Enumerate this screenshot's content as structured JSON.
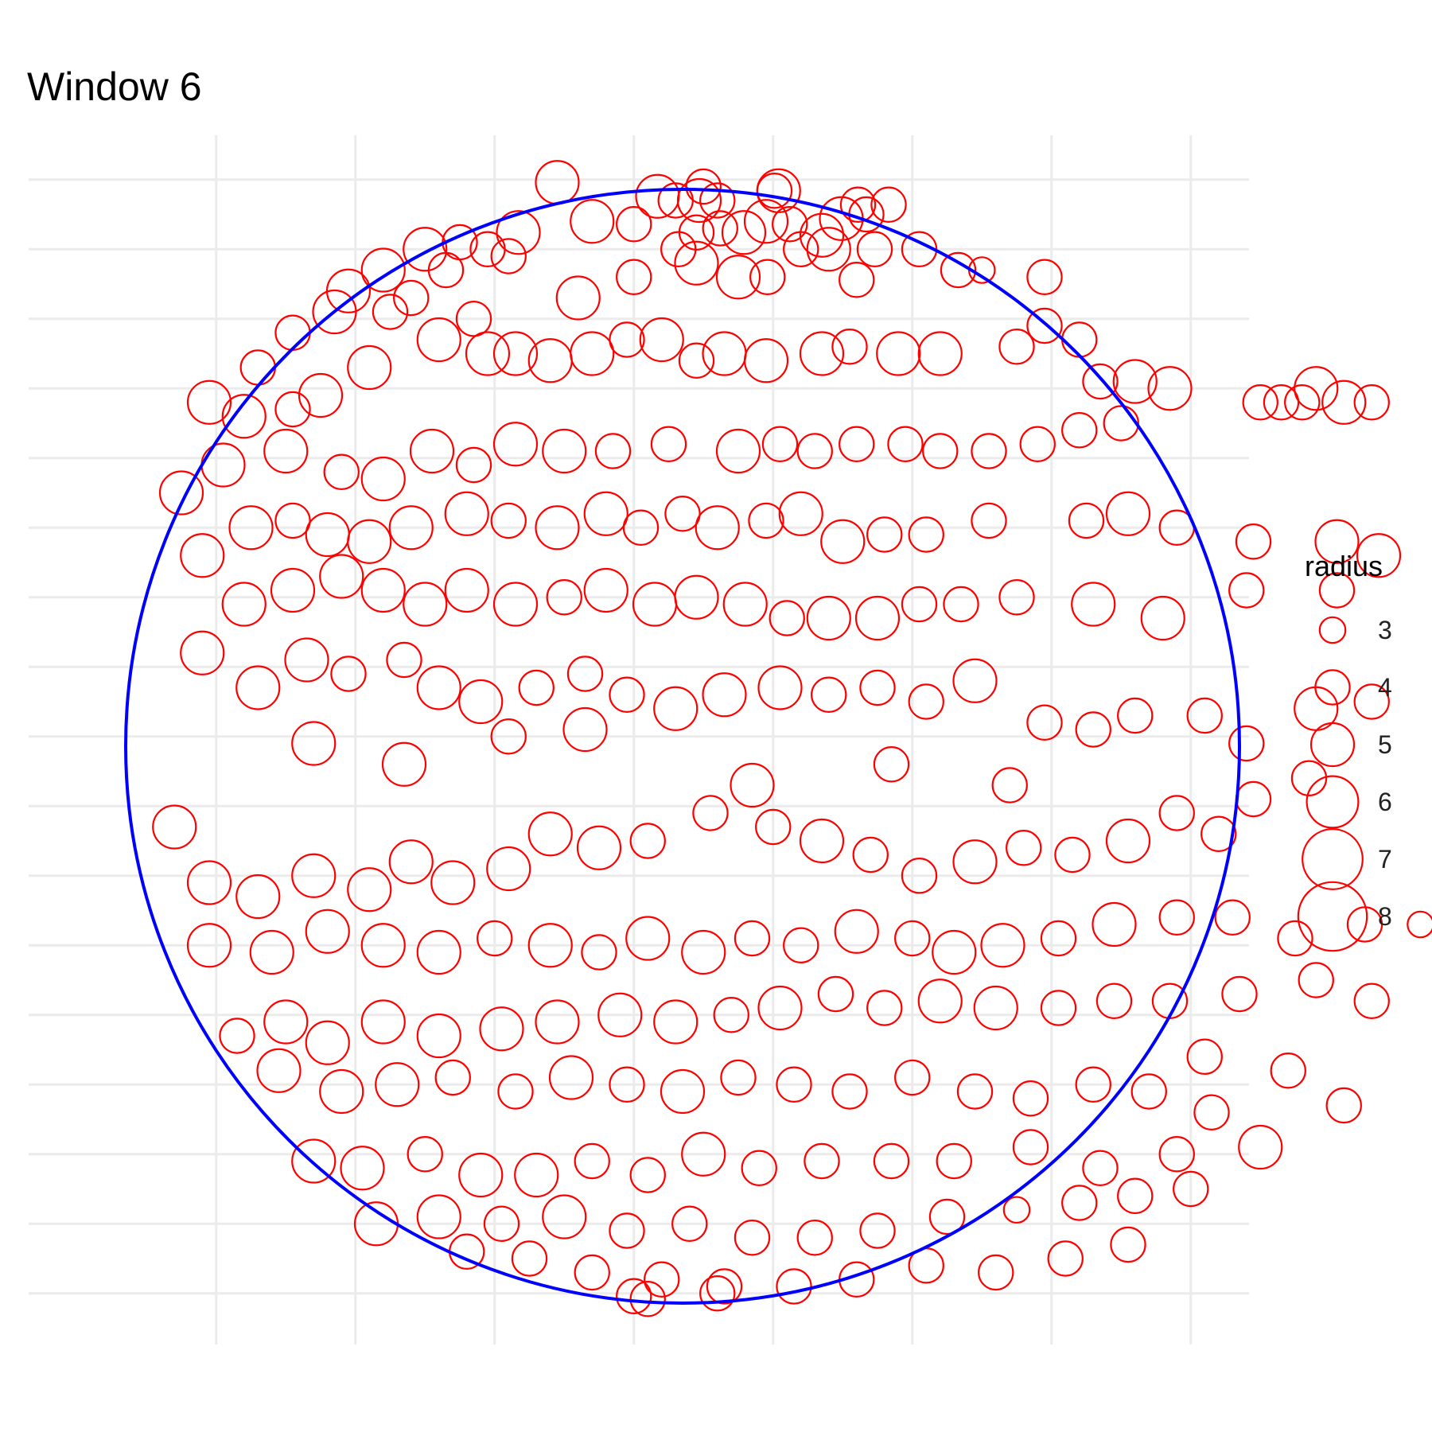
{
  "title": "Window 6",
  "chart_data": {
    "type": "scatter",
    "title": "Window 6",
    "xlabel": "",
    "ylabel": "",
    "grid": true,
    "legend_placement": "right",
    "legend": {
      "title": "radius",
      "sizes": [
        3,
        4,
        5,
        6,
        7,
        8
      ],
      "labels": [
        "3",
        "4",
        "5",
        "6",
        "7",
        "8"
      ]
    },
    "window": {
      "shape": "circle",
      "center": [
        0.35,
        -0.07
      ],
      "radius": 4.0,
      "color": "#0000ff"
    },
    "point_color": "#ff0000",
    "xlim": [
      -3.35,
      5.85
    ],
    "ylim": [
      -4.5,
      4.5
    ],
    "points": [
      [
        -0.55,
        3.98,
        5
      ],
      [
        0.17,
        3.88,
        5
      ],
      [
        0.5,
        3.95,
        4
      ],
      [
        1.01,
        3.92,
        4
      ],
      [
        1.04,
        3.92,
        5
      ],
      [
        0.3,
        3.85,
        4
      ],
      [
        0.47,
        3.85,
        5
      ],
      [
        0.6,
        3.85,
        4
      ],
      [
        1.61,
        3.82,
        4
      ],
      [
        1.83,
        3.82,
        4
      ],
      [
        1.49,
        3.72,
        5
      ],
      [
        1.67,
        3.75,
        4
      ],
      [
        0.95,
        3.7,
        5
      ],
      [
        0.62,
        3.65,
        4
      ],
      [
        0.79,
        3.62,
        5
      ],
      [
        0.45,
        3.62,
        4
      ],
      [
        0.0,
        3.68,
        4
      ],
      [
        -0.3,
        3.7,
        5
      ],
      [
        -0.83,
        3.62,
        5
      ],
      [
        -1.05,
        3.5,
        4
      ],
      [
        -1.25,
        3.55,
        4
      ],
      [
        -1.5,
        3.5,
        5
      ],
      [
        -0.9,
        3.45,
        4
      ],
      [
        -1.35,
        3.35,
        4
      ],
      [
        1.12,
        3.68,
        4
      ],
      [
        1.35,
        3.6,
        5
      ],
      [
        1.73,
        3.5,
        4
      ],
      [
        2.05,
        3.5,
        4
      ],
      [
        1.2,
        3.5,
        4
      ],
      [
        0.32,
        3.5,
        4
      ],
      [
        0.45,
        3.4,
        5
      ],
      [
        0.75,
        3.3,
        5
      ],
      [
        0.96,
        3.3,
        4
      ],
      [
        1.4,
        3.5,
        5
      ],
      [
        1.6,
        3.28,
        4
      ],
      [
        2.33,
        3.35,
        4
      ],
      [
        2.5,
        3.35,
        3
      ],
      [
        2.95,
        3.3,
        4
      ],
      [
        0.0,
        3.3,
        4
      ],
      [
        -0.4,
        3.15,
        5
      ],
      [
        -1.8,
        3.35,
        5
      ],
      [
        -2.05,
        3.2,
        5
      ],
      [
        -2.15,
        3.05,
        5
      ],
      [
        -1.75,
        3.05,
        4
      ],
      [
        -1.6,
        3.15,
        4
      ],
      [
        -2.45,
        2.9,
        4
      ],
      [
        -2.7,
        2.65,
        4
      ],
      [
        -3.05,
        2.4,
        5
      ],
      [
        -2.45,
        2.35,
        4
      ],
      [
        -2.25,
        2.45,
        5
      ],
      [
        -2.8,
        2.3,
        5
      ],
      [
        -1.9,
        2.65,
        5
      ],
      [
        -1.4,
        2.85,
        5
      ],
      [
        -1.15,
        3.0,
        4
      ],
      [
        -1.05,
        2.75,
        5
      ],
      [
        -0.85,
        2.75,
        5
      ],
      [
        -0.6,
        2.7,
        5
      ],
      [
        -0.3,
        2.75,
        5
      ],
      [
        -0.05,
        2.85,
        4
      ],
      [
        0.2,
        2.85,
        5
      ],
      [
        0.45,
        2.7,
        4
      ],
      [
        0.65,
        2.75,
        5
      ],
      [
        0.95,
        2.7,
        5
      ],
      [
        1.35,
        2.75,
        5
      ],
      [
        1.55,
        2.8,
        4
      ],
      [
        1.9,
        2.75,
        5
      ],
      [
        2.2,
        2.75,
        5
      ],
      [
        2.75,
        2.8,
        4
      ],
      [
        2.95,
        2.95,
        4
      ],
      [
        3.2,
        2.85,
        4
      ],
      [
        3.35,
        2.55,
        4
      ],
      [
        3.6,
        2.55,
        5
      ],
      [
        3.85,
        2.5,
        5
      ],
      [
        4.5,
        2.4,
        4
      ],
      [
        4.9,
        2.5,
        5
      ],
      [
        4.65,
        2.4,
        4
      ],
      [
        4.8,
        2.4,
        4
      ],
      [
        5.1,
        2.4,
        5
      ],
      [
        5.3,
        2.4,
        4
      ],
      [
        3.5,
        2.25,
        4
      ],
      [
        3.2,
        2.2,
        4
      ],
      [
        2.9,
        2.1,
        4
      ],
      [
        2.55,
        2.05,
        4
      ],
      [
        2.2,
        2.05,
        4
      ],
      [
        1.95,
        2.1,
        4
      ],
      [
        1.6,
        2.1,
        4
      ],
      [
        1.3,
        2.05,
        4
      ],
      [
        1.05,
        2.1,
        4
      ],
      [
        0.75,
        2.05,
        5
      ],
      [
        0.25,
        2.1,
        4
      ],
      [
        -0.15,
        2.05,
        4
      ],
      [
        -0.5,
        2.05,
        5
      ],
      [
        -0.85,
        2.1,
        5
      ],
      [
        -1.15,
        1.95,
        4
      ],
      [
        -1.45,
        2.05,
        5
      ],
      [
        -1.8,
        1.85,
        5
      ],
      [
        -2.1,
        1.9,
        4
      ],
      [
        -2.5,
        2.05,
        5
      ],
      [
        -2.95,
        1.95,
        5
      ],
      [
        -3.25,
        1.75,
        5
      ],
      [
        -3.1,
        1.3,
        5
      ],
      [
        -2.75,
        1.5,
        5
      ],
      [
        -2.45,
        1.55,
        4
      ],
      [
        -2.2,
        1.45,
        5
      ],
      [
        -1.9,
        1.4,
        5
      ],
      [
        -1.6,
        1.5,
        5
      ],
      [
        -1.2,
        1.6,
        5
      ],
      [
        -0.9,
        1.55,
        4
      ],
      [
        -0.55,
        1.5,
        5
      ],
      [
        -0.2,
        1.6,
        5
      ],
      [
        0.05,
        1.5,
        4
      ],
      [
        0.35,
        1.6,
        4
      ],
      [
        0.6,
        1.5,
        5
      ],
      [
        0.95,
        1.55,
        4
      ],
      [
        1.2,
        1.6,
        5
      ],
      [
        1.5,
        1.4,
        5
      ],
      [
        1.8,
        1.45,
        4
      ],
      [
        2.1,
        1.45,
        4
      ],
      [
        2.55,
        1.55,
        4
      ],
      [
        3.25,
        1.55,
        4
      ],
      [
        3.55,
        1.6,
        5
      ],
      [
        3.9,
        1.5,
        4
      ],
      [
        4.45,
        1.4,
        4
      ],
      [
        5.05,
        1.4,
        5
      ],
      [
        5.35,
        1.3,
        5
      ],
      [
        5.05,
        1.05,
        4
      ],
      [
        4.4,
        1.05,
        4
      ],
      [
        3.8,
        0.85,
        5
      ],
      [
        3.3,
        0.95,
        5
      ],
      [
        2.75,
        1.0,
        4
      ],
      [
        2.35,
        0.95,
        4
      ],
      [
        2.05,
        0.95,
        4
      ],
      [
        1.75,
        0.85,
        5
      ],
      [
        1.4,
        0.85,
        5
      ],
      [
        1.1,
        0.85,
        4
      ],
      [
        0.8,
        0.95,
        5
      ],
      [
        0.45,
        1.0,
        5
      ],
      [
        0.15,
        0.95,
        5
      ],
      [
        -0.2,
        1.05,
        5
      ],
      [
        -0.5,
        1.0,
        4
      ],
      [
        -0.85,
        0.95,
        5
      ],
      [
        -1.2,
        1.05,
        5
      ],
      [
        -1.5,
        0.95,
        5
      ],
      [
        -1.8,
        1.05,
        5
      ],
      [
        -2.1,
        1.15,
        5
      ],
      [
        -2.45,
        1.05,
        5
      ],
      [
        -2.8,
        0.95,
        5
      ],
      [
        -3.1,
        0.6,
        5
      ],
      [
        -2.7,
        0.35,
        5
      ],
      [
        -2.35,
        0.55,
        5
      ],
      [
        -2.05,
        0.45,
        4
      ],
      [
        -1.65,
        0.55,
        4
      ],
      [
        -1.4,
        0.35,
        5
      ],
      [
        -1.1,
        0.25,
        5
      ],
      [
        -0.7,
        0.35,
        4
      ],
      [
        -0.35,
        0.45,
        4
      ],
      [
        -0.05,
        0.3,
        4
      ],
      [
        0.3,
        0.2,
        5
      ],
      [
        0.65,
        0.3,
        5
      ],
      [
        1.05,
        0.35,
        5
      ],
      [
        1.4,
        0.3,
        4
      ],
      [
        1.75,
        0.35,
        4
      ],
      [
        2.1,
        0.25,
        4
      ],
      [
        2.45,
        0.4,
        5
      ],
      [
        2.95,
        0.1,
        4
      ],
      [
        3.3,
        0.05,
        4
      ],
      [
        3.6,
        0.15,
        4
      ],
      [
        4.1,
        0.15,
        4
      ],
      [
        4.4,
        -0.05,
        4
      ],
      [
        4.9,
        0.2,
        5
      ],
      [
        5.3,
        0.25,
        4
      ],
      [
        4.85,
        -0.3,
        4
      ],
      [
        4.45,
        -0.45,
        4
      ],
      [
        4.2,
        -0.7,
        4
      ],
      [
        3.9,
        -0.55,
        4
      ],
      [
        3.55,
        -0.75,
        5
      ],
      [
        3.15,
        -0.85,
        4
      ],
      [
        2.8,
        -0.8,
        4
      ],
      [
        2.45,
        -0.9,
        5
      ],
      [
        2.05,
        -1.0,
        4
      ],
      [
        1.7,
        -0.85,
        4
      ],
      [
        1.35,
        -0.75,
        5
      ],
      [
        1.0,
        -0.65,
        4
      ],
      [
        0.55,
        -0.55,
        4
      ],
      [
        0.1,
        -0.75,
        4
      ],
      [
        -0.25,
        -0.8,
        5
      ],
      [
        -0.6,
        -0.7,
        5
      ],
      [
        -0.9,
        -0.95,
        5
      ],
      [
        -1.3,
        -1.05,
        5
      ],
      [
        -1.6,
        -0.9,
        5
      ],
      [
        -1.9,
        -1.1,
        5
      ],
      [
        -2.3,
        -1.0,
        5
      ],
      [
        -2.7,
        -1.15,
        5
      ],
      [
        -3.05,
        -1.05,
        5
      ],
      [
        -3.3,
        -0.65,
        5
      ],
      [
        -3.05,
        -1.5,
        5
      ],
      [
        -2.6,
        -1.55,
        5
      ],
      [
        -2.2,
        -1.4,
        5
      ],
      [
        -1.8,
        -1.5,
        5
      ],
      [
        -1.4,
        -1.55,
        5
      ],
      [
        -1.0,
        -1.45,
        4
      ],
      [
        -0.6,
        -1.5,
        5
      ],
      [
        -0.25,
        -1.55,
        4
      ],
      [
        0.1,
        -1.45,
        5
      ],
      [
        0.5,
        -1.55,
        5
      ],
      [
        0.85,
        -1.45,
        4
      ],
      [
        1.2,
        -1.5,
        4
      ],
      [
        1.6,
        -1.4,
        5
      ],
      [
        2.0,
        -1.45,
        4
      ],
      [
        2.3,
        -1.55,
        5
      ],
      [
        2.65,
        -1.5,
        5
      ],
      [
        3.05,
        -1.45,
        4
      ],
      [
        3.45,
        -1.35,
        5
      ],
      [
        3.9,
        -1.3,
        4
      ],
      [
        4.3,
        -1.3,
        4
      ],
      [
        4.75,
        -1.45,
        4
      ],
      [
        5.25,
        -1.35,
        4
      ],
      [
        5.65,
        -1.35,
        3
      ],
      [
        5.3,
        -1.9,
        4
      ],
      [
        4.9,
        -1.75,
        4
      ],
      [
        4.35,
        -1.85,
        4
      ],
      [
        3.85,
        -1.9,
        4
      ],
      [
        3.45,
        -1.9,
        4
      ],
      [
        3.05,
        -1.95,
        4
      ],
      [
        2.6,
        -1.95,
        5
      ],
      [
        2.2,
        -1.9,
        5
      ],
      [
        1.8,
        -1.95,
        4
      ],
      [
        1.45,
        -1.85,
        4
      ],
      [
        1.05,
        -1.95,
        5
      ],
      [
        0.7,
        -2.0,
        4
      ],
      [
        0.3,
        -2.05,
        5
      ],
      [
        -0.1,
        -2.0,
        5
      ],
      [
        -0.55,
        -2.05,
        5
      ],
      [
        -0.95,
        -2.1,
        5
      ],
      [
        -1.4,
        -2.15,
        5
      ],
      [
        -1.8,
        -2.05,
        5
      ],
      [
        -2.2,
        -2.2,
        5
      ],
      [
        -2.5,
        -2.05,
        5
      ],
      [
        -2.85,
        -2.15,
        4
      ],
      [
        -2.55,
        -2.4,
        5
      ],
      [
        -2.1,
        -2.55,
        5
      ],
      [
        -1.7,
        -2.5,
        5
      ],
      [
        -1.3,
        -2.45,
        4
      ],
      [
        -0.85,
        -2.55,
        4
      ],
      [
        -0.45,
        -2.45,
        5
      ],
      [
        -0.05,
        -2.5,
        4
      ],
      [
        0.35,
        -2.55,
        5
      ],
      [
        0.75,
        -2.45,
        4
      ],
      [
        1.15,
        -2.5,
        4
      ],
      [
        1.55,
        -2.55,
        4
      ],
      [
        2.0,
        -2.45,
        4
      ],
      [
        2.45,
        -2.55,
        4
      ],
      [
        2.85,
        -2.6,
        4
      ],
      [
        3.3,
        -2.5,
        4
      ],
      [
        3.7,
        -2.55,
        4
      ],
      [
        4.15,
        -2.7,
        4
      ],
      [
        4.7,
        -2.4,
        4
      ],
      [
        5.1,
        -2.65,
        4
      ],
      [
        4.5,
        -2.95,
        5
      ],
      [
        3.9,
        -3.0,
        4
      ],
      [
        3.35,
        -3.1,
        4
      ],
      [
        2.85,
        -2.95,
        4
      ],
      [
        2.3,
        -3.05,
        4
      ],
      [
        1.85,
        -3.05,
        4
      ],
      [
        1.35,
        -3.05,
        4
      ],
      [
        0.9,
        -3.1,
        4
      ],
      [
        0.5,
        -3.0,
        5
      ],
      [
        0.1,
        -3.15,
        4
      ],
      [
        -0.3,
        -3.05,
        4
      ],
      [
        -0.7,
        -3.15,
        5
      ],
      [
        -1.1,
        -3.15,
        5
      ],
      [
        -1.5,
        -3.0,
        4
      ],
      [
        -1.95,
        -3.1,
        5
      ],
      [
        -2.3,
        -3.05,
        5
      ],
      [
        -1.85,
        -3.5,
        5
      ],
      [
        -1.4,
        -3.45,
        5
      ],
      [
        -0.95,
        -3.5,
        4
      ],
      [
        -0.5,
        -3.45,
        5
      ],
      [
        -0.05,
        -3.55,
        4
      ],
      [
        0.4,
        -3.5,
        4
      ],
      [
        0.85,
        -3.6,
        4
      ],
      [
        1.3,
        -3.6,
        4
      ],
      [
        1.75,
        -3.55,
        4
      ],
      [
        2.25,
        -3.45,
        4
      ],
      [
        2.75,
        -3.4,
        3
      ],
      [
        3.2,
        -3.35,
        4
      ],
      [
        3.6,
        -3.3,
        4
      ],
      [
        4.0,
        -3.25,
        4
      ],
      [
        3.55,
        -3.65,
        4
      ],
      [
        3.1,
        -3.75,
        4
      ],
      [
        2.6,
        -3.85,
        4
      ],
      [
        2.1,
        -3.8,
        4
      ],
      [
        1.6,
        -3.9,
        4
      ],
      [
        1.15,
        -3.95,
        4
      ],
      [
        0.65,
        -3.95,
        4
      ],
      [
        0.2,
        -3.9,
        4
      ],
      [
        -0.3,
        -3.85,
        4
      ],
      [
        -0.75,
        -3.75,
        4
      ],
      [
        -1.2,
        -3.7,
        4
      ],
      [
        0.0,
        -4.02,
        4
      ],
      [
        0.1,
        -4.04,
        4
      ],
      [
        0.6,
        -4.0,
        4
      ],
      [
        4.1,
        -2.3,
        4
      ],
      [
        2.7,
        -0.35,
        4
      ],
      [
        1.85,
        -0.2,
        4
      ],
      [
        0.85,
        -0.35,
        5
      ],
      [
        -0.35,
        0.05,
        5
      ],
      [
        -0.9,
        0.0,
        4
      ],
      [
        -1.65,
        -0.2,
        5
      ],
      [
        -2.3,
        -0.05,
        5
      ]
    ]
  }
}
